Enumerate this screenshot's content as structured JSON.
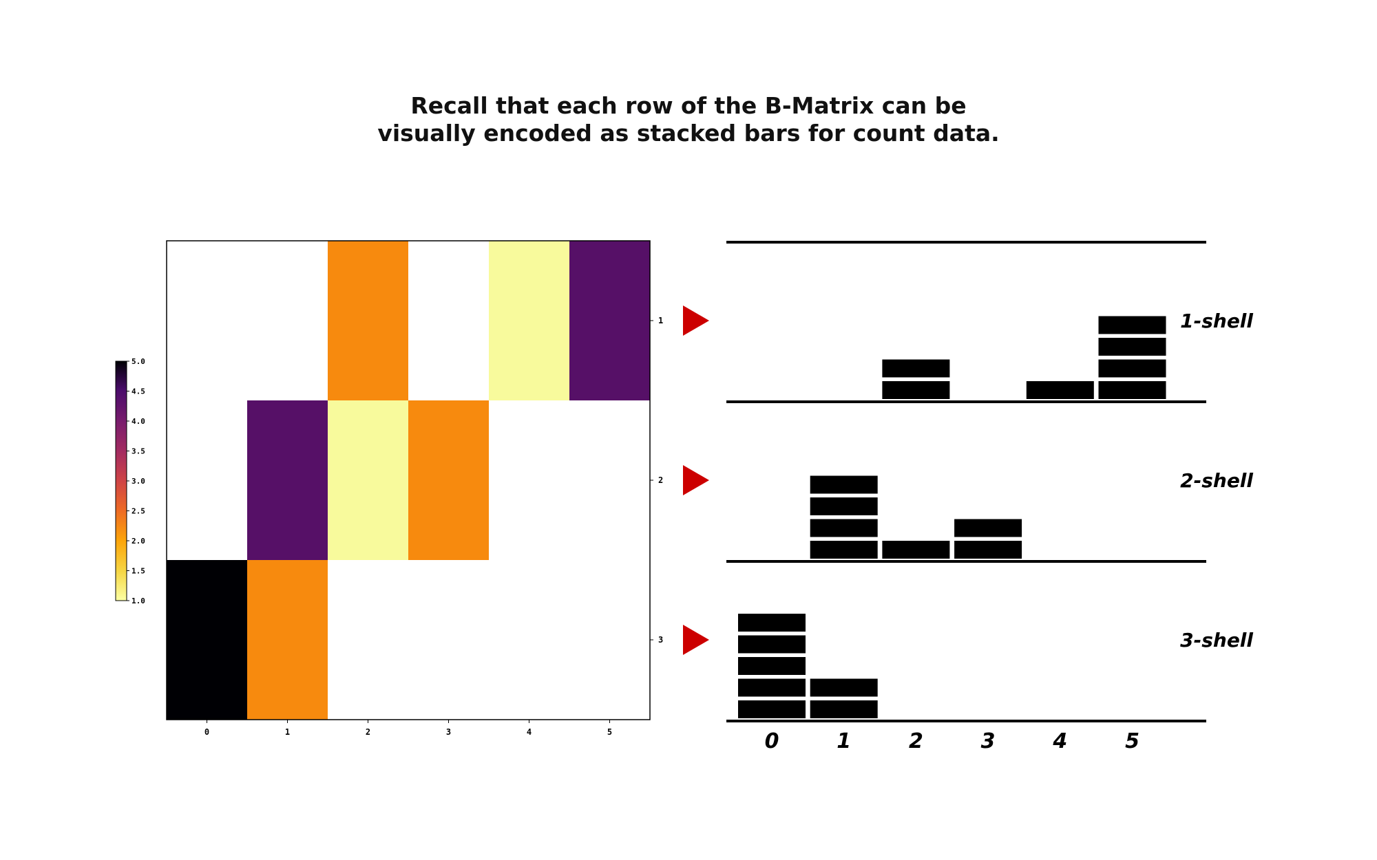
{
  "title": {
    "line1": "Recall that each row of the B-Matrix can be",
    "line2": "visually encoded as stacked bars for count data."
  },
  "colors": {
    "value_1": "#f8fa9c",
    "value_2": "#f78a0e",
    "value_4": "#561067",
    "value_5": "#000004",
    "arrow": "#cc0000",
    "bar": "#000000"
  },
  "chart_data": [
    {
      "type": "heatmap",
      "title": "",
      "xlabel": "",
      "ylabel": "",
      "x_ticks": [
        "0",
        "1",
        "2",
        "3",
        "4",
        "5"
      ],
      "y_ticks": [
        "1",
        "2",
        "3"
      ],
      "rows": [
        {
          "label": "1",
          "values": [
            0,
            0,
            2,
            0,
            1,
            4
          ]
        },
        {
          "label": "2",
          "values": [
            0,
            4,
            1,
            2,
            0,
            0
          ]
        },
        {
          "label": "3",
          "values": [
            5,
            2,
            0,
            0,
            0,
            0
          ]
        }
      ],
      "colorbar": {
        "colormap": "inferno_r",
        "range": [
          1.0,
          5.0
        ],
        "ticks": [
          "5.0",
          "4.5",
          "4.0",
          "3.5",
          "3.0",
          "2.5",
          "2.0",
          "1.5",
          "1.0"
        ]
      },
      "note_zero_cells": "white"
    },
    {
      "type": "bar",
      "stacked_units": true,
      "categories": [
        "0",
        "1",
        "2",
        "3",
        "4",
        "5"
      ],
      "series": [
        {
          "name": "1-shell",
          "values": [
            0,
            0,
            2,
            0,
            1,
            4
          ]
        },
        {
          "name": "2-shell",
          "values": [
            0,
            4,
            1,
            2,
            0,
            0
          ]
        },
        {
          "name": "3-shell",
          "values": [
            5,
            2,
            0,
            0,
            0,
            0
          ]
        }
      ]
    }
  ]
}
